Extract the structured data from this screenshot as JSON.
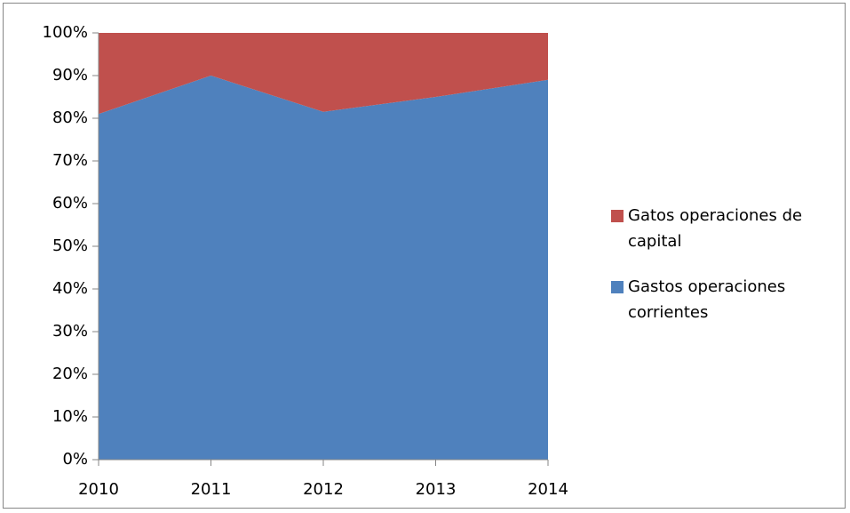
{
  "chart_data": {
    "type": "stacked_area",
    "categories": [
      "2010",
      "2011",
      "2012",
      "2013",
      "2014"
    ],
    "series": [
      {
        "name": "Gastos operaciones corrientes",
        "color": "#4f81bd",
        "values": [
          81,
          90,
          81.5,
          85,
          89
        ]
      },
      {
        "name": "Gatos operaciones de capital",
        "color": "#c0504d",
        "values": [
          19,
          10,
          18.5,
          15,
          11
        ]
      }
    ],
    "ylim": [
      0,
      100
    ],
    "yticks": [
      {
        "value": 0,
        "label": "0%"
      },
      {
        "value": 10,
        "label": "10%"
      },
      {
        "value": 20,
        "label": "20%"
      },
      {
        "value": 30,
        "label": "30%"
      },
      {
        "value": 40,
        "label": "40%"
      },
      {
        "value": 50,
        "label": "50%"
      },
      {
        "value": 60,
        "label": "60%"
      },
      {
        "value": 70,
        "label": "70%"
      },
      {
        "value": 80,
        "label": "80%"
      },
      {
        "value": 90,
        "label": "90%"
      },
      {
        "value": 100,
        "label": "100%"
      }
    ],
    "legend": "right"
  }
}
